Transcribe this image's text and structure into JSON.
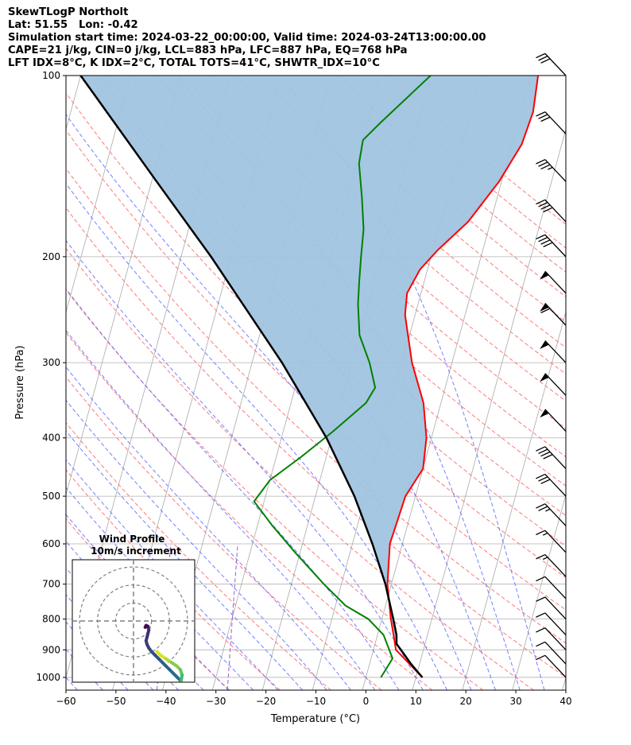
{
  "header": {
    "line1": "SkewTLogP Northolt",
    "line2": "Lat: 51.55   Lon: -0.42",
    "line3": "Simulation start time: 2024-03-22_00:00:00, Valid time: 2024-03-24T13:00:00.00",
    "line4": "CAPE=21 j/kg, CIN=0 j/kg, LCL=883 hPa, LFC=887 hPa, EQ=768 hPa",
    "line5": "LFT IDX=8°C, K IDX=2°C, TOTAL TOTS=41°C, SHWTR_IDX=10°C"
  },
  "inset": {
    "title_line1": "Wind Profile",
    "title_line2": "10m/s increment"
  },
  "colors": {
    "temperature": "#ff0000",
    "dewpoint": "#008000",
    "parcel": "#000000",
    "cape_fill": "#a0c4e0",
    "dry_adiabat": "#ff6a6a",
    "moist_adiabat": "#5a6aff",
    "mixing_ratio": "#9b59d0",
    "isotherm": "#a9a9a9"
  },
  "chart_data": {
    "type": "skew-t log-p",
    "xlabel": "Temperature (°C)",
    "ylabel": "Pressure (hPa)",
    "xlim": [
      -60,
      40
    ],
    "ylim": [
      1050,
      100
    ],
    "y_log_scale": true,
    "grid": true,
    "x_ticks": [
      -60,
      -50,
      -40,
      -30,
      -20,
      -10,
      0,
      10,
      20,
      30,
      40
    ],
    "x_tick_labels": [
      "−60",
      "−50",
      "−40",
      "−30",
      "−20",
      "−10",
      "0",
      "10",
      "20",
      "30",
      "40"
    ],
    "y_ticks": [
      1000,
      900,
      800,
      700,
      600,
      500,
      400,
      300,
      200,
      100
    ],
    "series": [
      {
        "key": "temperature",
        "points": [
          [
            1000,
            11.3
          ],
          [
            950,
            8
          ],
          [
            900,
            4.5
          ],
          [
            850,
            3.2
          ],
          [
            800,
            1.8
          ],
          [
            700,
            -0.8
          ],
          [
            600,
            -2.5
          ],
          [
            500,
            -2.0
          ],
          [
            450,
            0.0
          ],
          [
            400,
            -1.0
          ],
          [
            350,
            -3.5
          ],
          [
            300,
            -8.0
          ],
          [
            250,
            -12.0
          ],
          [
            230,
            -12.8
          ],
          [
            210,
            -11.5
          ],
          [
            195,
            -9.0
          ],
          [
            175,
            -4.5
          ],
          [
            150,
            -0.5
          ],
          [
            130,
            2.0
          ],
          [
            115,
            2.5
          ],
          [
            100,
            1.5
          ]
        ]
      },
      {
        "key": "dewpoint",
        "points": [
          [
            1000,
            3.0
          ],
          [
            930,
            4.3
          ],
          [
            850,
            1.2
          ],
          [
            800,
            -2.7
          ],
          [
            760,
            -8.0
          ],
          [
            700,
            -13.5
          ],
          [
            620,
            -21.0
          ],
          [
            560,
            -27.0
          ],
          [
            510,
            -32.0
          ],
          [
            470,
            -30.0
          ],
          [
            430,
            -25.0
          ],
          [
            390,
            -20.0
          ],
          [
            350,
            -15.0
          ],
          [
            330,
            -14.0
          ],
          [
            300,
            -16.5
          ],
          [
            270,
            -20.0
          ],
          [
            240,
            -22.0
          ],
          [
            220,
            -23.0
          ],
          [
            200,
            -24.0
          ],
          [
            180,
            -25.0
          ],
          [
            160,
            -27.0
          ],
          [
            140,
            -29.5
          ],
          [
            128,
            -30.0
          ],
          [
            120,
            -27.5
          ],
          [
            100,
            -20.0
          ]
        ]
      },
      {
        "key": "parcel",
        "points": [
          [
            1000,
            11.3
          ],
          [
            950,
            8.3
          ],
          [
            900,
            5.5
          ],
          [
            880,
            4.3
          ],
          [
            850,
            3.8
          ],
          [
            800,
            2.3
          ],
          [
            700,
            -1.2
          ],
          [
            600,
            -6.0
          ],
          [
            500,
            -12.2
          ],
          [
            400,
            -21.0
          ],
          [
            300,
            -34.0
          ],
          [
            250,
            -43.0
          ],
          [
            200,
            -54.0
          ],
          [
            150,
            -69.0
          ],
          [
            100,
            -90.0
          ]
        ]
      }
    ],
    "wind_barbs": [
      {
        "pressure": 100,
        "speed_kt": 30
      },
      {
        "pressure": 125,
        "speed_kt": 30
      },
      {
        "pressure": 150,
        "speed_kt": 35
      },
      {
        "pressure": 175,
        "speed_kt": 40
      },
      {
        "pressure": 200,
        "speed_kt": 40
      },
      {
        "pressure": 230,
        "speed_kt": 50
      },
      {
        "pressure": 260,
        "speed_kt": 60
      },
      {
        "pressure": 300,
        "speed_kt": 50
      },
      {
        "pressure": 340,
        "speed_kt": 50
      },
      {
        "pressure": 390,
        "speed_kt": 50
      },
      {
        "pressure": 450,
        "speed_kt": 40
      },
      {
        "pressure": 500,
        "speed_kt": 30
      },
      {
        "pressure": 560,
        "speed_kt": 25
      },
      {
        "pressure": 620,
        "speed_kt": 15
      },
      {
        "pressure": 680,
        "speed_kt": 15
      },
      {
        "pressure": 740,
        "speed_kt": 10
      },
      {
        "pressure": 800,
        "speed_kt": 10
      },
      {
        "pressure": 850,
        "speed_kt": 10
      },
      {
        "pressure": 900,
        "speed_kt": 10
      },
      {
        "pressure": 950,
        "speed_kt": 10
      },
      {
        "pressure": 1000,
        "speed_kt": 10
      }
    ],
    "hodograph": {
      "rings_ms": [
        10,
        20,
        30
      ],
      "range_ms": 34,
      "path_ms": [
        [
          26,
          -33
        ],
        [
          24,
          -31
        ],
        [
          22,
          -29
        ],
        [
          20,
          -27
        ],
        [
          18,
          -25
        ],
        [
          16,
          -23
        ],
        [
          14,
          -21
        ],
        [
          12,
          -19
        ],
        [
          10,
          -17
        ],
        [
          8.5,
          -15
        ],
        [
          7.5,
          -13
        ],
        [
          7,
          -11
        ],
        [
          7.5,
          -9
        ],
        [
          8,
          -7
        ],
        [
          8.5,
          -5
        ],
        [
          8,
          -3
        ],
        [
          7,
          -2.5
        ],
        [
          6.5,
          -3.5
        ]
      ],
      "path2_ms": [
        [
          13,
          -17
        ],
        [
          15,
          -19
        ],
        [
          18,
          -21
        ],
        [
          21,
          -23
        ],
        [
          24,
          -25
        ],
        [
          26,
          -27
        ],
        [
          27,
          -30
        ],
        [
          26.5,
          -33
        ]
      ]
    }
  }
}
